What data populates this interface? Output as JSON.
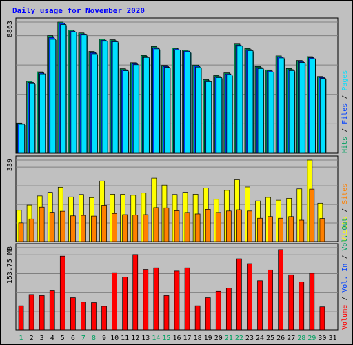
{
  "title": "Daily usage for November 2020",
  "colors": {
    "background": "#c0c0c0",
    "plot": "#c0c0c0",
    "grid": "#808080",
    "hits": "#00a060",
    "files": "#0040ff",
    "pages": "#00e0ff",
    "visits": "#ffff00",
    "sites": "#ff8000",
    "volume": "#ff0000",
    "title": "#0000ff",
    "weekend": "#00a060",
    "weekday": "#000000",
    "legend_sep": "#000000"
  },
  "chart_data": [
    {
      "type": "bar",
      "panel": "top",
      "y_max_label": "8863",
      "ylim": [
        0,
        8863
      ],
      "legend": [
        {
          "label": "Hits",
          "color": "#00a060"
        },
        {
          "label": "Files",
          "color": "#0040ff"
        },
        {
          "label": "Pages",
          "color": "#00e0ff"
        }
      ],
      "series": [
        {
          "name": "Hits",
          "values": [
            2040,
            4860,
            5500,
            7950,
            8863,
            8320,
            8130,
            6880,
            7710,
            7670,
            5710,
            6120,
            6610,
            7210,
            5940,
            7120,
            6970,
            5960,
            4970,
            5250,
            5430,
            7380,
            7070,
            5860,
            5630,
            6580,
            5720,
            6270,
            6530,
            5190
          ]
        },
        {
          "name": "Files",
          "values": [
            2000,
            4780,
            5430,
            7830,
            8780,
            8250,
            8060,
            6800,
            7640,
            7600,
            5640,
            6050,
            6540,
            7130,
            5870,
            7050,
            6900,
            5890,
            4900,
            5180,
            5360,
            7310,
            7000,
            5790,
            5560,
            6510,
            5650,
            6200,
            6460,
            5120
          ]
        },
        {
          "name": "Pages",
          "values": [
            1960,
            4700,
            5360,
            7700,
            8700,
            8180,
            7990,
            6720,
            7570,
            7530,
            5570,
            5980,
            6470,
            7050,
            5800,
            6980,
            6830,
            5820,
            4830,
            5110,
            5290,
            7240,
            6930,
            5720,
            5490,
            6440,
            5580,
            6130,
            6390,
            5050
          ]
        }
      ]
    },
    {
      "type": "bar",
      "panel": "middle",
      "y_max_label": "339",
      "ylim": [
        0,
        339
      ],
      "legend": [
        {
          "label": "Visits",
          "color": "#ffff00"
        },
        {
          "label": "Sites",
          "color": "#ff8000"
        }
      ],
      "series": [
        {
          "name": "Visits",
          "values": [
            130,
            152,
            190,
            205,
            226,
            186,
            196,
            183,
            252,
            197,
            197,
            193,
            202,
            264,
            235,
            196,
            205,
            197,
            223,
            176,
            213,
            257,
            227,
            169,
            184,
            172,
            180,
            219,
            339,
            160
          ]
        },
        {
          "name": "Sites",
          "values": [
            78,
            94,
            143,
            122,
            126,
            107,
            109,
            106,
            151,
            117,
            112,
            110,
            112,
            141,
            140,
            128,
            121,
            115,
            134,
            121,
            127,
            132,
            127,
            97,
            104,
            97,
            104,
            89,
            218,
            96
          ]
        }
      ]
    },
    {
      "type": "bar",
      "panel": "bottom",
      "y_max_label": "153.75 MB",
      "ylim": [
        0,
        153.75
      ],
      "legend": [
        {
          "label": "Volume",
          "color": "#ff0000"
        },
        {
          "label": "Vol. In",
          "color": "#0040ff"
        },
        {
          "label": "Vol. Out",
          "color": "#00a060"
        }
      ],
      "series": [
        {
          "name": "Volume",
          "values": [
            45,
            66,
            64,
            73,
            138,
            60,
            52,
            51,
            44,
            107,
            99,
            141,
            113,
            116,
            64,
            110,
            116,
            45,
            60,
            72,
            78,
            133,
            124,
            92,
            112,
            150,
            103,
            90,
            106,
            43
          ]
        }
      ]
    }
  ],
  "x_axis": {
    "labels": [
      "1",
      "2",
      "3",
      "4",
      "5",
      "6",
      "7",
      "8",
      "9",
      "10",
      "11",
      "12",
      "13",
      "14",
      "15",
      "16",
      "17",
      "18",
      "19",
      "20",
      "21",
      "22",
      "23",
      "24",
      "25",
      "26",
      "27",
      "28",
      "29",
      "30",
      "31"
    ],
    "weekend_days": [
      1,
      7,
      8,
      14,
      15,
      21,
      22,
      28,
      29
    ]
  }
}
